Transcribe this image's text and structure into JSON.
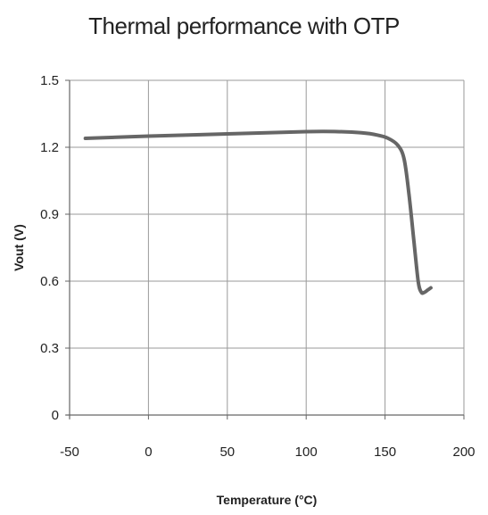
{
  "chart_data": {
    "type": "line",
    "title": "Thermal performance with OTP",
    "xlabel": "Temperature (°C)",
    "ylabel": "Vout (V)",
    "xlim": [
      -50,
      200
    ],
    "ylim": [
      0,
      1.5
    ],
    "x_ticks": [
      -50,
      0,
      50,
      100,
      150,
      200
    ],
    "x_tick_labels": [
      "-50",
      "0",
      "50",
      "100",
      "150",
      "200"
    ],
    "y_ticks": [
      0,
      0.3,
      0.6,
      0.9,
      1.2,
      1.5
    ],
    "y_tick_labels": [
      "0",
      "0.3",
      "0.6",
      "0.9",
      "1.2",
      "1.5"
    ],
    "grid": true,
    "series": [
      {
        "color": "#666666",
        "x": [
          -40,
          0,
          50,
          100,
          120,
          135,
          145,
          152,
          158,
          162,
          165,
          168,
          171,
          173,
          175,
          177,
          179
        ],
        "y": [
          1.24,
          1.25,
          1.26,
          1.27,
          1.27,
          1.265,
          1.255,
          1.24,
          1.21,
          1.15,
          1.0,
          0.8,
          0.6,
          0.55,
          0.55,
          0.56,
          0.57
        ]
      }
    ]
  }
}
